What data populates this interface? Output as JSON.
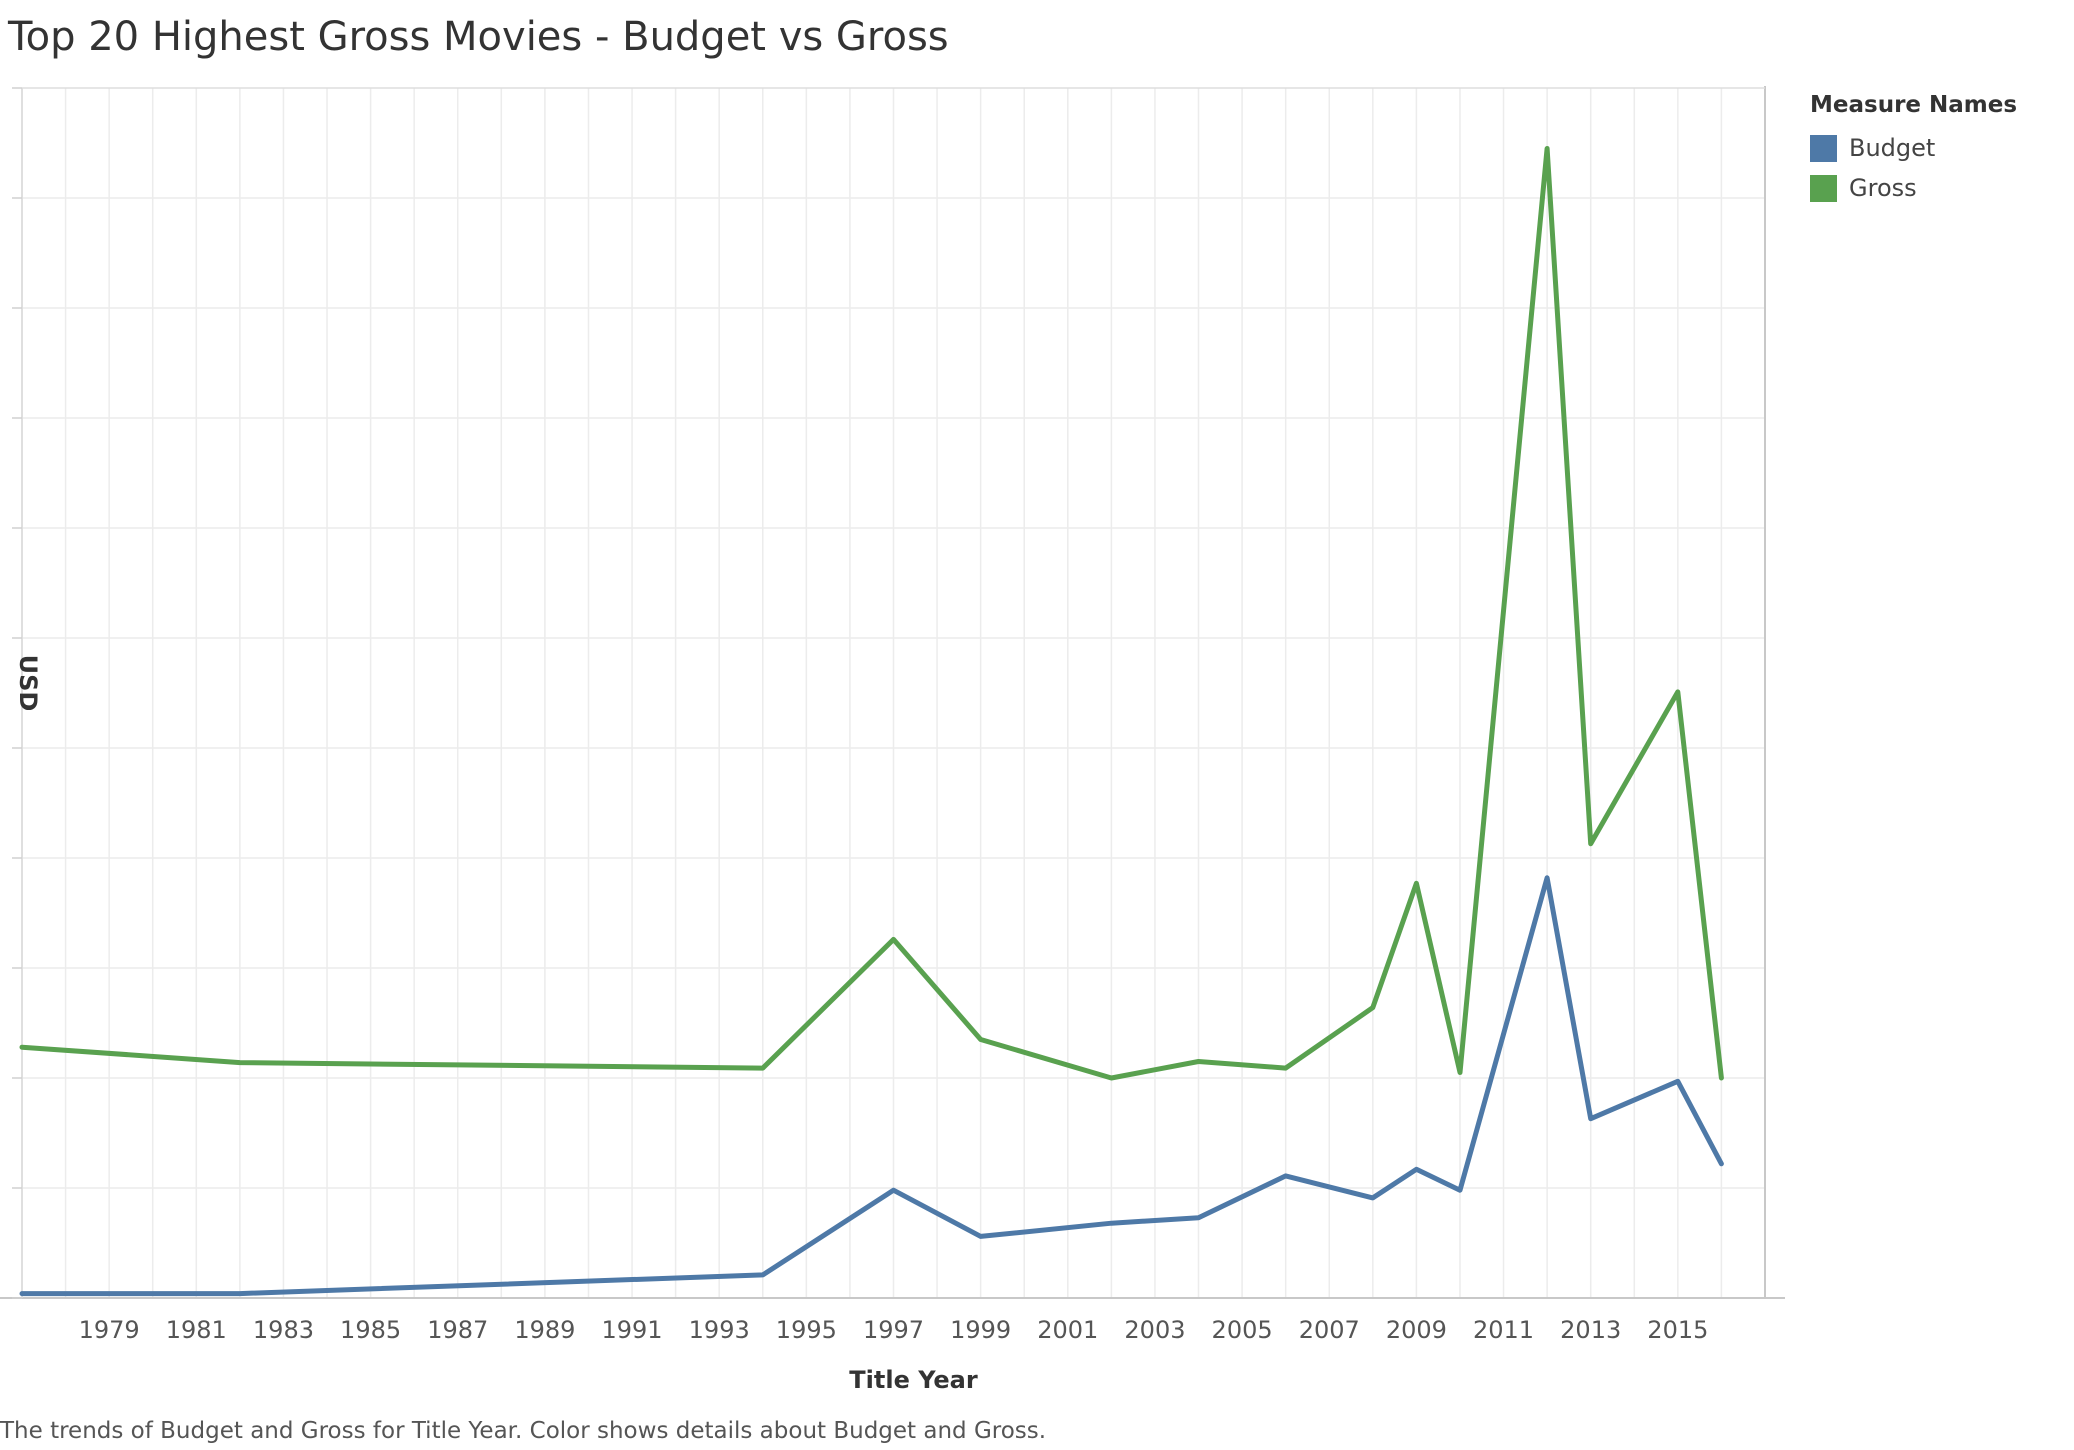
{
  "chart_data": {
    "type": "line",
    "title": "Top 20 Highest Gross Movies - Budget vs Gross",
    "xlabel": "Title Year",
    "ylabel": "USD",
    "xlim": [
      1977,
      2017
    ],
    "ylim": [
      0,
      1100
    ],
    "x_ticks": [
      1979,
      1981,
      1983,
      1985,
      1987,
      1989,
      1991,
      1993,
      1995,
      1997,
      1999,
      2001,
      2003,
      2005,
      2007,
      2009,
      2011,
      2013,
      2015
    ],
    "grid": true,
    "legend": {
      "title": "Measure Names",
      "position": "top-right"
    },
    "series": [
      {
        "name": "Budget",
        "color": "#4e79a7",
        "x": [
          1977,
          1982,
          1994,
          1997,
          1999,
          2002,
          2004,
          2006,
          2008,
          2009,
          2010,
          2012,
          2013,
          2015,
          2016
        ],
        "values": [
          4,
          4,
          21,
          98,
          56,
          68,
          73,
          111,
          91,
          117,
          98,
          382,
          163,
          197,
          122
        ]
      },
      {
        "name": "Gross",
        "color": "#59a14f",
        "x": [
          1977,
          1982,
          1994,
          1997,
          1999,
          2002,
          2004,
          2006,
          2008,
          2009,
          2010,
          2012,
          2013,
          2015,
          2016
        ],
        "values": [
          228,
          214,
          209,
          326,
          235,
          200,
          215,
          209,
          264,
          377,
          205,
          1045,
          413,
          551,
          200
        ]
      }
    ]
  },
  "caption": "The trends of Budget and Gross for Title Year.  Color shows details about Budget and Gross."
}
